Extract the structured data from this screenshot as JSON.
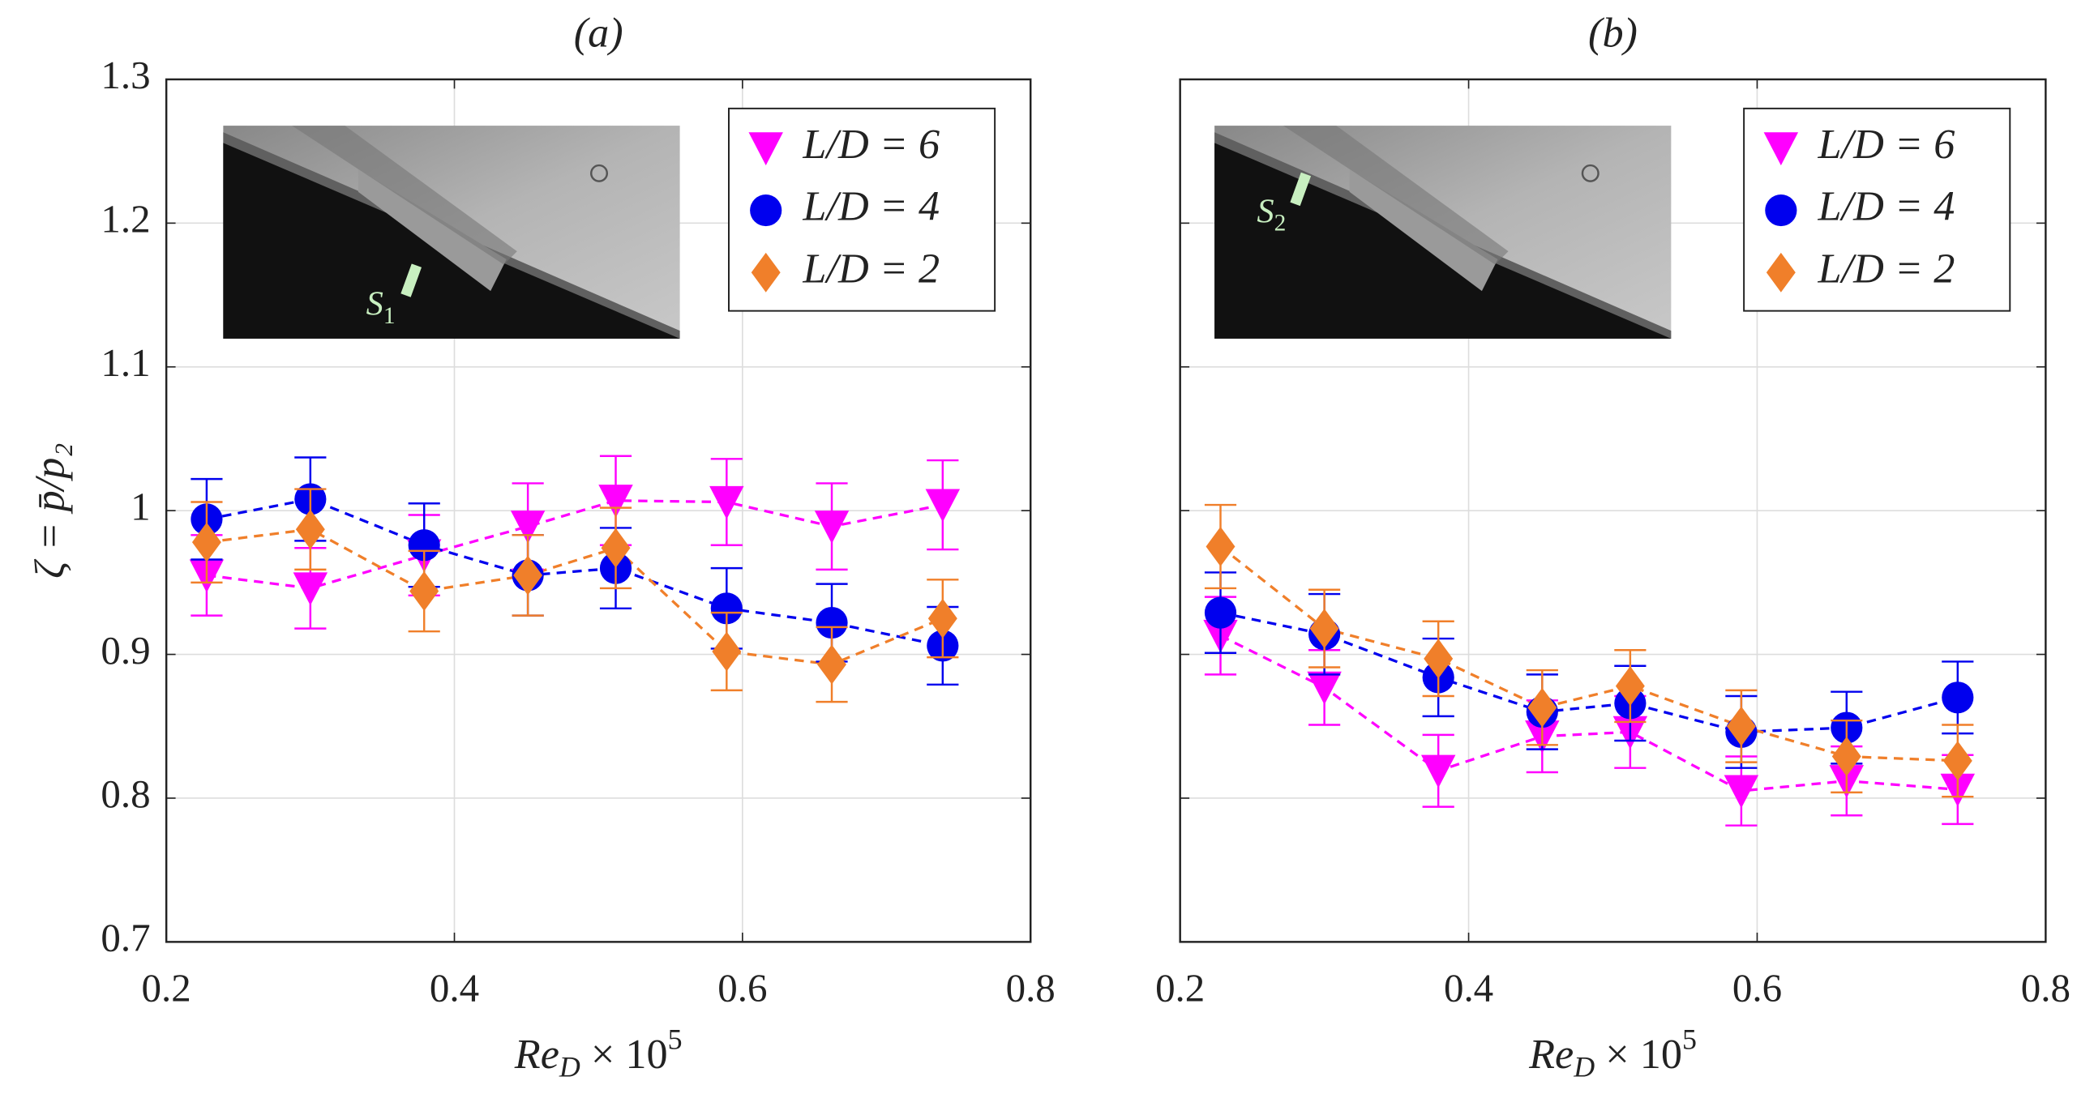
{
  "chart_data": [
    {
      "type": "line",
      "title": "(a)",
      "xlabel": [
        "Re",
        "D",
        " × 10",
        "5"
      ],
      "ylabel": "ζ = p̄/p₂",
      "annotation": {
        "text": "S",
        "subscript": "1"
      },
      "x": [
        0.228,
        0.3,
        0.379,
        0.451,
        0.512,
        0.589,
        0.662,
        0.739
      ],
      "series": [
        {
          "name": "L/D = 6",
          "color": "#ff00ff",
          "marker": "triangle-down",
          "values": [
            0.955,
            0.946,
            0.969,
            0.989,
            1.007,
            1.006,
            0.989,
            1.004
          ],
          "errors": [
            0.028,
            0.028,
            0.028,
            0.03,
            0.031,
            0.03,
            0.03,
            0.031
          ]
        },
        {
          "name": "L/D = 4",
          "color": "#0000ee",
          "marker": "circle",
          "values": [
            0.994,
            1.008,
            0.976,
            0.955,
            0.96,
            0.932,
            0.922,
            0.906
          ],
          "errors": [
            0.028,
            0.029,
            0.029,
            0.028,
            0.028,
            0.028,
            0.027,
            0.027
          ]
        },
        {
          "name": "L/D = 2",
          "color": "#f07f2a",
          "marker": "diamond",
          "values": [
            0.978,
            0.987,
            0.944,
            0.955,
            0.974,
            0.902,
            0.893,
            0.925
          ],
          "errors": [
            0.028,
            0.028,
            0.028,
            0.028,
            0.028,
            0.027,
            0.026,
            0.027
          ]
        }
      ],
      "xlim": [
        0.2,
        0.8
      ],
      "xticks": [
        0.2,
        0.4,
        0.6,
        0.8
      ],
      "ylim": [
        0.7,
        1.3
      ],
      "yticks": [
        0.7,
        0.8,
        0.9,
        1,
        1.1,
        1.2,
        1.3
      ],
      "ytick_labels": true,
      "grid": true,
      "legend": "upper right"
    },
    {
      "type": "line",
      "title": "(b)",
      "xlabel": [
        "Re",
        "D",
        " × 10",
        "5"
      ],
      "annotation": {
        "text": "S",
        "subscript": "2"
      },
      "x": [
        0.228,
        0.3,
        0.379,
        0.451,
        0.512,
        0.589,
        0.662,
        0.739
      ],
      "series": [
        {
          "name": "L/D = 6",
          "color": "#ff00ff",
          "marker": "triangle-down",
          "values": [
            0.913,
            0.877,
            0.819,
            0.843,
            0.846,
            0.805,
            0.812,
            0.806
          ],
          "errors": [
            0.027,
            0.026,
            0.025,
            0.025,
            0.025,
            0.024,
            0.024,
            0.024
          ]
        },
        {
          "name": "L/D = 4",
          "color": "#0000ee",
          "marker": "circle",
          "values": [
            0.929,
            0.914,
            0.884,
            0.86,
            0.866,
            0.846,
            0.849,
            0.87
          ],
          "errors": [
            0.028,
            0.028,
            0.027,
            0.026,
            0.026,
            0.025,
            0.025,
            0.025
          ]
        },
        {
          "name": "L/D = 2",
          "color": "#f07f2a",
          "marker": "diamond",
          "values": [
            0.975,
            0.918,
            0.897,
            0.863,
            0.878,
            0.85,
            0.829,
            0.826
          ],
          "errors": [
            0.029,
            0.027,
            0.026,
            0.026,
            0.025,
            0.025,
            0.025,
            0.025
          ]
        }
      ],
      "xlim": [
        0.2,
        0.8
      ],
      "xticks": [
        0.2,
        0.4,
        0.6,
        0.8
      ],
      "ylim": [
        0.7,
        1.3
      ],
      "yticks": [
        0.7,
        0.8,
        0.9,
        1,
        1.1,
        1.2,
        1.3
      ],
      "ytick_labels": false,
      "grid": true,
      "legend": "upper right"
    }
  ]
}
